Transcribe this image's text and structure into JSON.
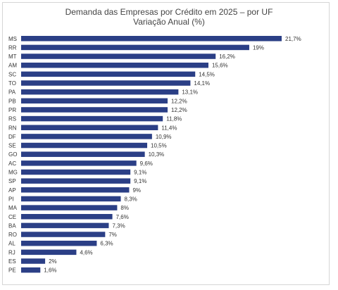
{
  "chart_data": {
    "type": "bar",
    "orientation": "horizontal",
    "title": "Demanda das Empresas por Crédito em 2025 – por UF",
    "subtitle": "Variação Anual (%)",
    "categories": [
      "MS",
      "RR",
      "MT",
      "AM",
      "SC",
      "TO",
      "PA",
      "PB",
      "PR",
      "RS",
      "RN",
      "DF",
      "SE",
      "GO",
      "AC",
      "MG",
      "SP",
      "AP",
      "PI",
      "MA",
      "CE",
      "BA",
      "RO",
      "AL",
      "RJ",
      "ES",
      "PE"
    ],
    "values": [
      21.7,
      19,
      16.2,
      15.6,
      14.5,
      14.1,
      13.1,
      12.2,
      12.2,
      11.8,
      11.4,
      10.9,
      10.5,
      10.3,
      9.6,
      9.1,
      9.1,
      9,
      8.3,
      8,
      7.6,
      7.3,
      7,
      6.3,
      4.6,
      2,
      1.6
    ],
    "labels": [
      "21,7%",
      "19%",
      "16,2%",
      "15,6%",
      "14,5%",
      "14,1%",
      "13,1%",
      "12,2%",
      "12,2%",
      "11,8%",
      "11,4%",
      "10,9%",
      "10,5%",
      "10,3%",
      "9,6%",
      "9,1%",
      "9,1%",
      "9%",
      "8,3%",
      "8%",
      "7,6%",
      "7,3%",
      "7%",
      "6,3%",
      "4,6%",
      "2%",
      "1,6%"
    ],
    "bar_color": "#2b3f86",
    "xlim": [
      0,
      21.7
    ],
    "grid": false,
    "legend": "none"
  }
}
